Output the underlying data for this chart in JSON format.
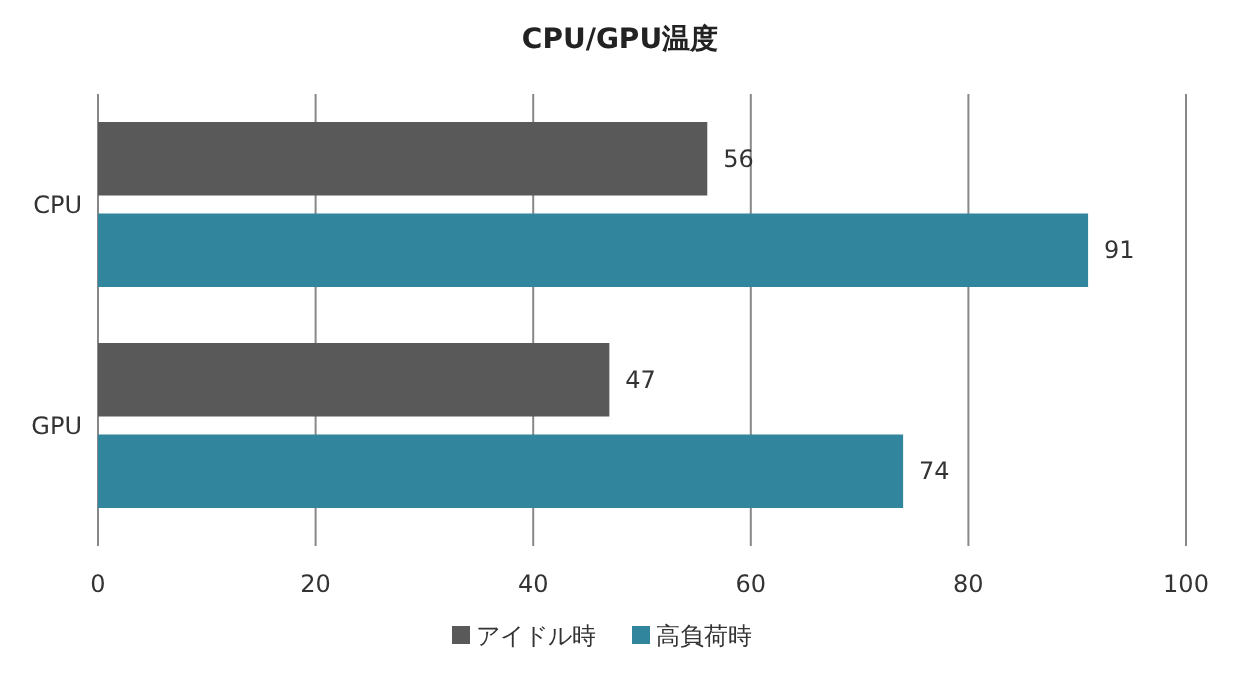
{
  "chart_data": {
    "type": "bar",
    "orientation": "horizontal",
    "title": "CPU/GPU温度",
    "categories": [
      "CPU",
      "GPU"
    ],
    "series": [
      {
        "name": "アイドル時",
        "color": "#595959",
        "values": [
          56,
          47
        ]
      },
      {
        "name": "高負荷時",
        "color": "#31859c",
        "values": [
          91,
          74
        ]
      }
    ],
    "xlim": [
      0,
      100
    ],
    "xticks": [
      0,
      20,
      40,
      60,
      80,
      100
    ],
    "grid": "x",
    "legend": "bottom",
    "data_labels": true
  }
}
